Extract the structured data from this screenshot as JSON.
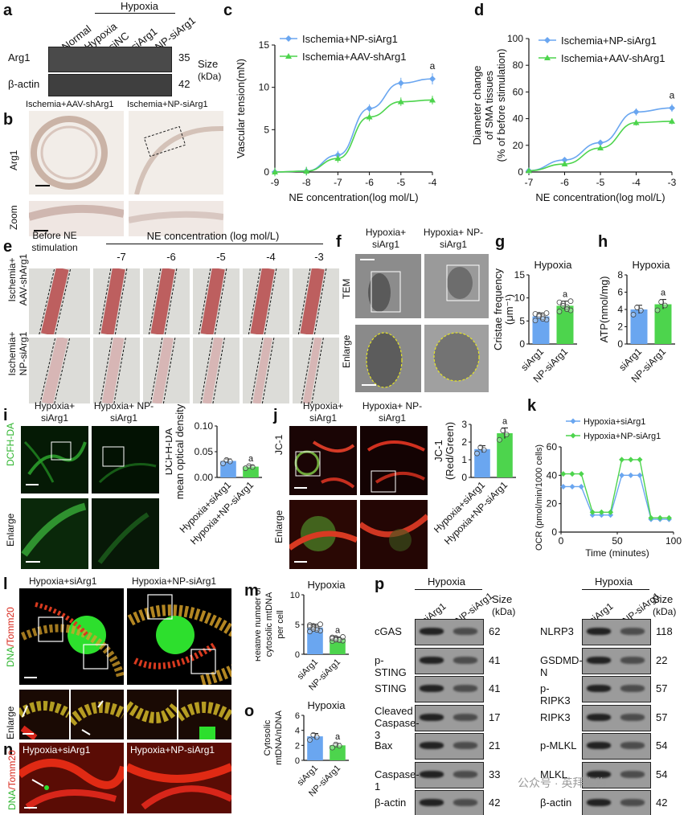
{
  "panels": {
    "a": {
      "label": "a",
      "group_label": "Hypoxia",
      "lanes": [
        "Normal",
        "Hypoxia",
        "siNC",
        "siArg1",
        "NP-siArg1"
      ],
      "rows": [
        {
          "name": "Arg1",
          "size": "35"
        },
        {
          "name": "β-actin",
          "size": "42"
        }
      ],
      "size_header": "Size",
      "size_unit": "(kDa)"
    },
    "b": {
      "label": "b",
      "col1": "Ischemia+AAV-shArg1",
      "col2": "Ischemia+NP-siArg1",
      "row1": "Arg1",
      "row2": "Zoom"
    },
    "c": {
      "label": "c"
    },
    "d": {
      "label": "d"
    },
    "e": {
      "label": "e",
      "header_left": "Before NE stimulation",
      "header_right": "NE concentration (log mol/L)",
      "concs": [
        "-7",
        "-6",
        "-5",
        "-4",
        "-3"
      ],
      "row1": "Ischemia+ AAV-shArg1",
      "row2": "Ischemia+ NP-siArg1"
    },
    "f": {
      "label": "f",
      "col1": "Hypoxia+ siArg1",
      "col2": "Hypoxia+ NP-siArg1",
      "row1": "TEM",
      "row2": "Enlarge"
    },
    "g": {
      "label": "g"
    },
    "h": {
      "label": "h"
    },
    "i": {
      "label": "i",
      "col1": "Hypoxia+ siArg1",
      "col2": "Hypoxia+ NP-siArg1",
      "row1": "DCFH-DA",
      "row2": "Enlarge"
    },
    "j": {
      "label": "j",
      "col1": "Hypoxia+ siArg1",
      "col2": "Hypoxia+ NP-siArg1",
      "row1": "JC-1",
      "row2": "Enlarge"
    },
    "k": {
      "label": "k"
    },
    "l": {
      "label": "l",
      "col1": "Hypoxia+siArg1",
      "col2": "Hypoxia+NP-siArg1",
      "row1_a": "DNA",
      "row1_b": "/Tomm20",
      "row2": "Enlarge"
    },
    "m": {
      "label": "m"
    },
    "n": {
      "label": "n",
      "col1": "Hypoxia+siArg1",
      "col2": "Hypoxia+NP-siArg1",
      "row_a": "DNA",
      "row_b": "/Tomm20"
    },
    "o": {
      "label": "o"
    },
    "p": {
      "label": "p",
      "group_label": "Hypoxia",
      "lanes": [
        "siArg1",
        "NP-siArg1"
      ],
      "size_header": "Size",
      "size_unit": "(kDa)",
      "left_rows": [
        {
          "name": "cGAS",
          "size": "62"
        },
        {
          "name": "p-STING",
          "size": "41"
        },
        {
          "name": "STING",
          "size": "41"
        },
        {
          "name": "Cleaved Caspase-3",
          "size": "17"
        },
        {
          "name": "Bax",
          "size": "21"
        },
        {
          "name": "Caspase-1",
          "size": "33"
        },
        {
          "name": "β-actin",
          "size": "42"
        }
      ],
      "right_rows": [
        {
          "name": "NLRP3",
          "size": "118"
        },
        {
          "name": "GSDMD-N",
          "size": "22"
        },
        {
          "name": "p-RIPK3",
          "size": "57"
        },
        {
          "name": "RIPK3",
          "size": "57"
        },
        {
          "name": "p-MLKL",
          "size": "54"
        },
        {
          "name": "MLKL",
          "size": "54"
        },
        {
          "name": "β-actin",
          "size": "42"
        }
      ]
    },
    "watermark": "公众号 · 英拜生物"
  },
  "chart_data": [
    {
      "id": "c",
      "type": "line",
      "xlabel": "NE concentration(log mol/L)",
      "ylabel": "Vascular tension(mN)",
      "x": [
        -9,
        -8,
        -7,
        -6,
        -5,
        -4
      ],
      "xlim": [
        -9,
        -4
      ],
      "ylim": [
        0,
        15
      ],
      "yticks": [
        0,
        5,
        10,
        15
      ],
      "annotation": "a",
      "series": [
        {
          "name": "Ischemia+NP-siArg1",
          "color": "#6aa6f0",
          "values": [
            0,
            0.1,
            2.0,
            7.5,
            10.5,
            11.0
          ]
        },
        {
          "name": "Ischemia+AAV-shArg1",
          "color": "#4dd44d",
          "values": [
            0,
            0.1,
            1.6,
            6.5,
            8.3,
            8.5
          ]
        }
      ]
    },
    {
      "id": "d",
      "type": "line",
      "xlabel": "NE concentration(log mol/L)",
      "ylabel": "Diameter change of SMA tissues (% of before stimulation)",
      "x": [
        -7,
        -6,
        -5,
        -4,
        -3
      ],
      "xlim": [
        -7,
        -3
      ],
      "ylim": [
        0,
        100
      ],
      "yticks": [
        0,
        20,
        40,
        60,
        80,
        100
      ],
      "annotation": "a",
      "series": [
        {
          "name": "Ischemia+NP-siArg1",
          "color": "#6aa6f0",
          "values": [
            1,
            9,
            22,
            45,
            48
          ]
        },
        {
          "name": "Ischemia+AAV-shArg1",
          "color": "#4dd44d",
          "values": [
            1,
            6,
            18,
            37,
            38
          ]
        }
      ]
    },
    {
      "id": "g",
      "type": "bar",
      "title": "Hypoxia",
      "ylabel": "Cristae frequency (μm⁻¹)",
      "categories": [
        "siArg1",
        "NP-siArg1"
      ],
      "values": [
        6.0,
        8.3
      ],
      "colors": [
        "#6aa6f0",
        "#4dd44d"
      ],
      "ylim": [
        0,
        15
      ],
      "yticks": [
        0,
        5,
        10,
        15
      ],
      "annotation": "a"
    },
    {
      "id": "h",
      "type": "bar",
      "title": "Hypoxia",
      "ylabel": "ATP(nmol/mg)",
      "categories": [
        "siArg1",
        "NP-siArg1"
      ],
      "values": [
        4.0,
        4.6
      ],
      "colors": [
        "#6aa6f0",
        "#4dd44d"
      ],
      "ylim": [
        0,
        8
      ],
      "yticks": [
        0,
        2,
        4,
        6,
        8
      ],
      "annotation": "a"
    },
    {
      "id": "i",
      "type": "bar",
      "ylabel": "DCFH-DA mean optical density",
      "categories": [
        "Hypoxia+siArg1",
        "Hypoxia+NP-siArg1"
      ],
      "values": [
        0.032,
        0.021
      ],
      "colors": [
        "#6aa6f0",
        "#4dd44d"
      ],
      "ylim": [
        0,
        0.1
      ],
      "yticks": [
        0.0,
        0.05,
        0.1
      ],
      "ytick_labels": [
        "0.00",
        "0.05",
        "0.10"
      ],
      "annotation": "a"
    },
    {
      "id": "j",
      "type": "bar",
      "ylabel": "JC-1 (Red/Green)",
      "categories": [
        "Hypoxia+siArg1",
        "Hypoxia+NP-siArg1"
      ],
      "values": [
        1.6,
        2.5
      ],
      "colors": [
        "#6aa6f0",
        "#4dd44d"
      ],
      "ylim": [
        0,
        3
      ],
      "yticks": [
        0,
        1,
        2,
        3
      ],
      "annotation": "a"
    },
    {
      "id": "k",
      "type": "line",
      "xlabel": "Time (minutes)",
      "ylabel": "OCR (pmol/min/1000 cells)",
      "x": [
        2,
        10,
        18,
        28,
        36,
        44,
        54,
        62,
        70,
        80,
        88,
        96
      ],
      "xlim": [
        0,
        100
      ],
      "xticks": [
        0,
        50,
        100
      ],
      "ylim": [
        0,
        60
      ],
      "yticks": [
        0,
        20,
        40,
        60
      ],
      "series": [
        {
          "name": "Hypoxia+siArg1",
          "color": "#6aa6f0",
          "values": [
            32,
            32,
            32,
            12,
            12,
            12,
            40,
            40,
            40,
            9,
            9,
            9
          ]
        },
        {
          "name": "Hypoxia+NP-siArg1",
          "color": "#4dd44d",
          "values": [
            41,
            41,
            41,
            14,
            14,
            14,
            51,
            51,
            51,
            10,
            10,
            10
          ]
        }
      ]
    },
    {
      "id": "m",
      "type": "bar",
      "title": "Hypoxia",
      "ylabel": "Relative number of cytosolic mtDNA per cell",
      "categories": [
        "siArg1",
        "NP-siArg1"
      ],
      "values": [
        4.5,
        2.6
      ],
      "colors": [
        "#6aa6f0",
        "#4dd44d"
      ],
      "ylim": [
        0,
        10
      ],
      "yticks": [
        0,
        5,
        10
      ],
      "annotation": "a"
    },
    {
      "id": "o",
      "type": "bar",
      "title": "Hypoxia",
      "ylabel": "Cytosolic mtDNA/nDNA",
      "categories": [
        "siArg1",
        "NP-siArg1"
      ],
      "values": [
        3.2,
        2.0
      ],
      "colors": [
        "#6aa6f0",
        "#4dd44d"
      ],
      "ylim": [
        0,
        6
      ],
      "yticks": [
        0,
        2,
        4,
        6
      ],
      "annotation": "a"
    }
  ]
}
